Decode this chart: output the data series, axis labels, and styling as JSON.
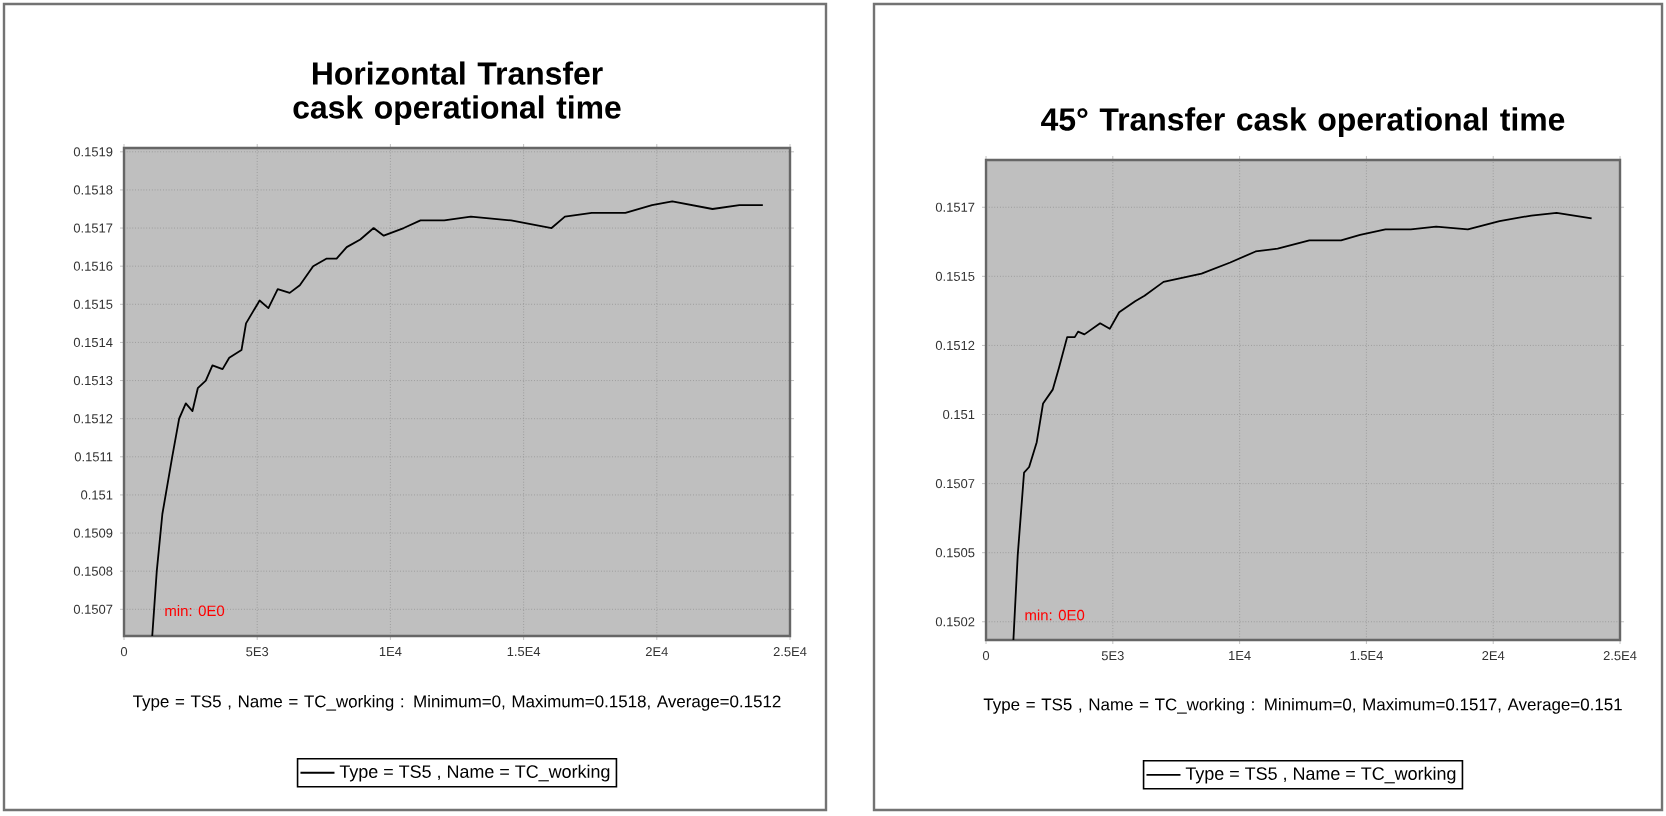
{
  "chart_data": [
    {
      "type": "line",
      "title": "Horizontal Transfer cask operational time",
      "xlim": [
        0,
        25000
      ],
      "ylim": [
        0.15063,
        0.15191
      ],
      "xticks": [
        0,
        {
          "value": 5000,
          "label": "5E3"
        },
        {
          "value": 10000,
          "label": "1E4"
        },
        {
          "value": 15000,
          "label": "1.5E4"
        },
        {
          "value": 20000,
          "label": "2E4"
        },
        {
          "value": 25000,
          "label": "2.5E4"
        }
      ],
      "yticks": [
        0.1507,
        0.1508,
        0.1509,
        0.151,
        0.1511,
        0.1512,
        0.1513,
        0.1514,
        0.1515,
        0.1516,
        0.1517,
        0.1518,
        0.1519
      ],
      "grid": true,
      "legend": "bottom",
      "annotations": [
        "min: 0E0",
        "Type = TS5 , Name = TC_working  : Minimum=0,  Maximum=0.1518, Average=0.1512"
      ],
      "series": [
        {
          "name": "Type = TS5 , Name = TC_working",
          "color": "#000000",
          "x": [
            1060,
            1230,
            1440,
            1810,
            2070,
            2320,
            2570,
            2770,
            3070,
            3320,
            3700,
            3950,
            4410,
            4580,
            5090,
            5420,
            5770,
            6220,
            6600,
            7100,
            7610,
            7980,
            8360,
            8870,
            9370,
            9750,
            10500,
            11130,
            12020,
            13020,
            14530,
            16050,
            16550,
            17560,
            18820,
            19820,
            20580,
            22090,
            23100,
            23980
          ],
          "values": [
            0.15063,
            0.1508,
            0.15095,
            0.1511,
            0.1512,
            0.15124,
            0.15122,
            0.15128,
            0.1513,
            0.15134,
            0.15133,
            0.15136,
            0.15138,
            0.15145,
            0.15151,
            0.15149,
            0.15154,
            0.15153,
            0.15155,
            0.1516,
            0.15162,
            0.15162,
            0.15165,
            0.15167,
            0.1517,
            0.15168,
            0.1517,
            0.15172,
            0.15172,
            0.15173,
            0.15172,
            0.1517,
            0.15173,
            0.15174,
            0.15174,
            0.15176,
            0.15177,
            0.15175,
            0.15176,
            0.15176
          ]
        }
      ]
    },
    {
      "type": "line",
      "title": "45° Transfer cask operational time",
      "xlim": [
        0,
        25000
      ],
      "ylim": [
        0.150134,
        0.151871
      ],
      "xticks": [
        0,
        {
          "value": 5000,
          "label": "5E3"
        },
        {
          "value": 10000,
          "label": "1E4"
        },
        {
          "value": 15000,
          "label": "1.5E4"
        },
        {
          "value": 20000,
          "label": "2E4"
        },
        {
          "value": 25000,
          "label": "2.5E4"
        }
      ],
      "yticks": [
        0.1502,
        {
          "value": 0.15045,
          "label": "0.1505"
        },
        0.1507,
        {
          "value": 0.15095,
          "label": "0.151"
        },
        0.1512,
        {
          "value": 0.15145,
          "label": "0.1515"
        },
        0.1517
      ],
      "grid": true,
      "legend": "bottom",
      "annotations": [
        "min: 0E0",
        "Type = TS5 , Name = TC_working  : Minimum=0,  Maximum=0.1517, Average=0.151"
      ],
      "series": [
        {
          "name": "Type = TS5 , Name = TC_working",
          "color": "#000000",
          "x": [
            1080,
            1250,
            1500,
            1700,
            2000,
            2250,
            2630,
            2880,
            3200,
            3500,
            3630,
            3880,
            4500,
            4880,
            5250,
            5880,
            6250,
            7000,
            8500,
            9630,
            10630,
            11500,
            12750,
            14000,
            14750,
            15750,
            16750,
            17750,
            19000,
            20250,
            21500,
            22500,
            23880
          ],
          "values": [
            0.150134,
            0.15044,
            0.15074,
            0.15076,
            0.15085,
            0.15099,
            0.15104,
            0.15112,
            0.15123,
            0.15123,
            0.15125,
            0.15124,
            0.15128,
            0.15126,
            0.15132,
            0.15136,
            0.15138,
            0.15143,
            0.15146,
            0.1515,
            0.15154,
            0.15155,
            0.15158,
            0.15158,
            0.1516,
            0.15162,
            0.15162,
            0.15163,
            0.15162,
            0.15165,
            0.15167,
            0.15168,
            0.15166
          ]
        }
      ]
    }
  ]
}
